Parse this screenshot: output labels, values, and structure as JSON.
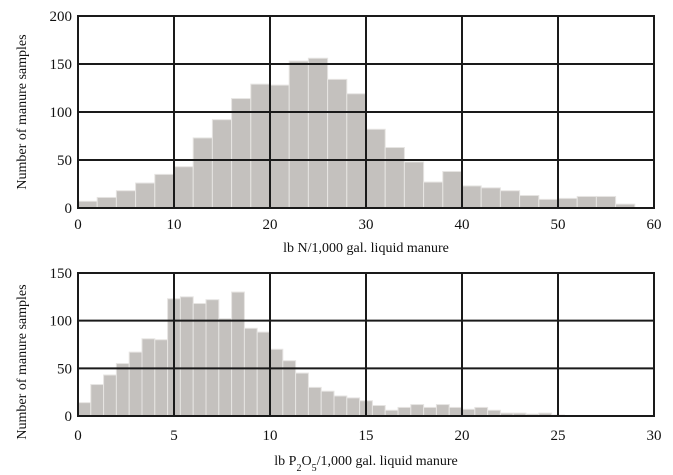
{
  "colors": {
    "bar_fill": "#c4c1be",
    "bar_stroke": "#e6e4e2",
    "grid": "#1a1a1a",
    "frame": "#1a1a1a",
    "text": "#111111"
  },
  "shared_ylabel": "Number of manure samples",
  "chart_data": [
    {
      "type": "bar",
      "xlabel": "lb N/1,000 gal. liquid manure",
      "xlabel_parts": {
        "pre": "lb N/1,000 gal. liquid manure",
        "sub": "",
        "post": ""
      },
      "ylabel": "Number of manure samples",
      "xlim": [
        0,
        60
      ],
      "ylim": [
        0,
        200
      ],
      "xticks": [
        0,
        10,
        20,
        30,
        40,
        50,
        60
      ],
      "yticks": [
        0,
        50,
        100,
        150,
        200
      ],
      "grid": true,
      "bin_width": 2,
      "bin_edges_start": 0,
      "values": [
        7,
        11,
        18,
        26,
        35,
        43,
        73,
        92,
        114,
        129,
        128,
        153,
        156,
        134,
        119,
        82,
        63,
        48,
        27,
        38,
        23,
        21,
        18,
        13,
        9,
        10,
        12,
        12,
        4,
        0
      ]
    },
    {
      "type": "bar",
      "xlabel": "lb P2O5/1,000 gal. liquid manure",
      "xlabel_parts": {
        "pre": "lb P",
        "sub1": "2",
        "mid": "O",
        "sub2": "5",
        "post": "/1,000 gal. liquid manure"
      },
      "ylabel": "Number of manure samples",
      "xlim": [
        0,
        30
      ],
      "ylim": [
        0,
        150
      ],
      "xticks": [
        0,
        5,
        10,
        15,
        20,
        25,
        30
      ],
      "yticks": [
        0,
        50,
        100,
        150
      ],
      "grid": true,
      "bin_width": 0.6667,
      "bin_edges_start": 0,
      "values": [
        14,
        33,
        43,
        55,
        67,
        81,
        80,
        123,
        125,
        118,
        122,
        102,
        130,
        92,
        88,
        70,
        58,
        45,
        30,
        26,
        21,
        19,
        16,
        11,
        6,
        9,
        12,
        9,
        12,
        9,
        7,
        9,
        6,
        3,
        3,
        2,
        3,
        1,
        0,
        0,
        0,
        0,
        0,
        0,
        0
      ]
    }
  ]
}
